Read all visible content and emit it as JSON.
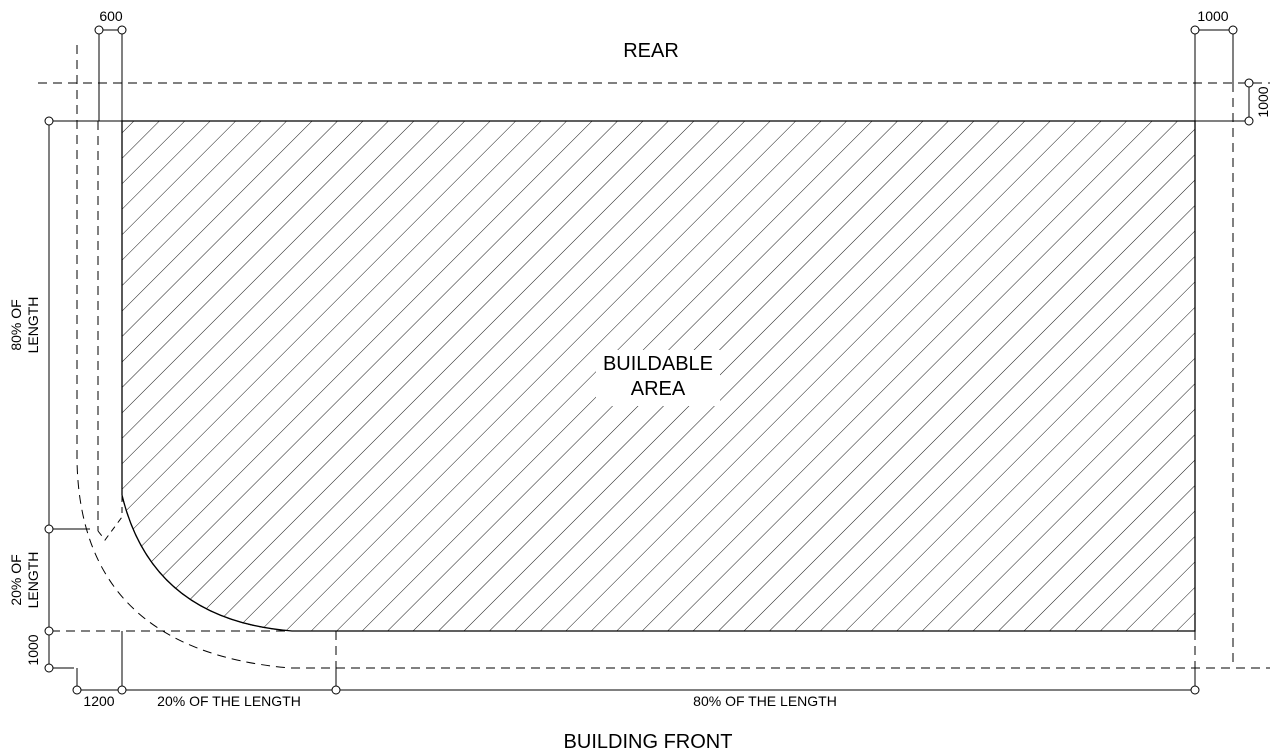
{
  "labels": {
    "rear": "REAR",
    "building_front": "BUILDING FRONT",
    "buildable_line1": "BUILDABLE",
    "buildable_line2": "AREA"
  },
  "dimensions": {
    "top_left_setback": "600",
    "top_right_setback": "1000",
    "right_rear_setback": "1000",
    "left_bottom_setback": "1000",
    "bottom_left_setback": "1200",
    "left_upper_line1": "80% OF",
    "left_upper_line2": "LENGTH",
    "left_lower_line1": "20% OF",
    "left_lower_line2": "LENGTH",
    "bottom_short": "20% OF THE LENGTH",
    "bottom_long": "80% OF THE LENGTH"
  },
  "colors": {
    "line": "#000000",
    "background": "#ffffff"
  }
}
